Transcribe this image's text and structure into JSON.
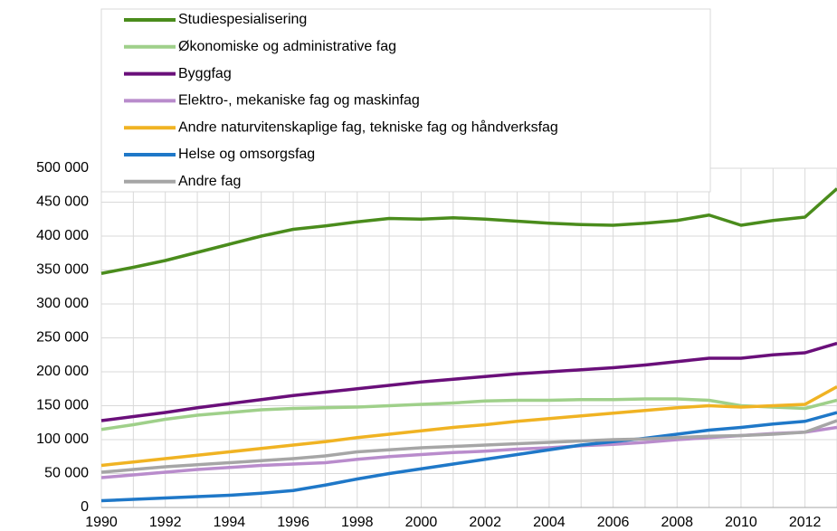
{
  "chart_data": {
    "type": "line",
    "x": [
      1990,
      1991,
      1992,
      1993,
      1994,
      1995,
      1996,
      1997,
      1998,
      1999,
      2000,
      2001,
      2002,
      2003,
      2004,
      2005,
      2006,
      2007,
      2008,
      2009,
      2010,
      2011,
      2012,
      2013
    ],
    "series": [
      {
        "name": "Studiespesialisering",
        "color": "#4a8c1c",
        "values": [
          345000,
          354000,
          364000,
          376000,
          388000,
          400000,
          410000,
          415000,
          421000,
          426000,
          425000,
          427000,
          425000,
          422000,
          419000,
          417000,
          416000,
          419000,
          423000,
          431000,
          416000,
          423000,
          428000,
          470000
        ]
      },
      {
        "name": "Økonomiske og administrative fag",
        "color": "#9fd08a",
        "values": [
          115000,
          122000,
          130000,
          136000,
          140000,
          144000,
          146000,
          147000,
          148000,
          150000,
          152000,
          154000,
          157000,
          158000,
          158000,
          159000,
          159000,
          160000,
          160000,
          158000,
          150000,
          148000,
          146000,
          158000
        ]
      },
      {
        "name": "Byggfag",
        "color": "#6a0f7a",
        "values": [
          128000,
          134000,
          140000,
          147000,
          153000,
          159000,
          165000,
          170000,
          175000,
          180000,
          185000,
          189000,
          193000,
          197000,
          200000,
          203000,
          206000,
          210000,
          215000,
          220000,
          220000,
          225000,
          228000,
          242000
        ]
      },
      {
        "name": "Elektro-, mekaniske fag og maskinfag",
        "color": "#b98ccc",
        "values": [
          44000,
          48000,
          52000,
          56000,
          59000,
          62000,
          64000,
          66000,
          71000,
          75000,
          78000,
          81000,
          83000,
          86000,
          88000,
          91000,
          93000,
          96000,
          100000,
          103000,
          106000,
          109000,
          111000,
          118000
        ]
      },
      {
        "name": "Andre naturvitenskaplige fag, tekniske fag og håndverksfag",
        "color": "#f0b323",
        "values": [
          62000,
          67000,
          72000,
          77000,
          82000,
          87000,
          92000,
          97000,
          103000,
          108000,
          113000,
          118000,
          122000,
          127000,
          131000,
          135000,
          139000,
          143000,
          147000,
          150000,
          148000,
          150000,
          152000,
          178000
        ]
      },
      {
        "name": "Helse og omsorgsfag",
        "color": "#1f78c8",
        "values": [
          10000,
          12000,
          14000,
          16000,
          18000,
          21000,
          25000,
          33000,
          42000,
          50000,
          57000,
          64000,
          71000,
          78000,
          85000,
          92000,
          97000,
          102000,
          108000,
          114000,
          118000,
          123000,
          127000,
          140000
        ]
      },
      {
        "name": "Andre fag",
        "color": "#a6a6a6",
        "values": [
          52000,
          56000,
          60000,
          63000,
          66000,
          69000,
          72000,
          76000,
          82000,
          85000,
          88000,
          90000,
          92000,
          94000,
          96000,
          98000,
          100000,
          101000,
          103000,
          105000,
          106000,
          108000,
          111000,
          128000
        ]
      }
    ],
    "xlim": [
      1990,
      2013
    ],
    "xticks": [
      1990,
      1992,
      1994,
      1996,
      1998,
      2000,
      2002,
      2004,
      2006,
      2008,
      2010,
      2012
    ],
    "ylim": [
      0,
      500000
    ],
    "yticks": [
      {
        "value": 0,
        "label": "0"
      },
      {
        "value": 50000,
        "label": "50 000"
      },
      {
        "value": 100000,
        "label": "100 000"
      },
      {
        "value": 150000,
        "label": "150 000"
      },
      {
        "value": 200000,
        "label": "200 000"
      },
      {
        "value": 250000,
        "label": "250 000"
      },
      {
        "value": 300000,
        "label": "300 000"
      },
      {
        "value": 350000,
        "label": "350 000"
      },
      {
        "value": 400000,
        "label": "400 000"
      },
      {
        "value": 450000,
        "label": "450 000"
      },
      {
        "value": 500000,
        "label": "500 000"
      }
    ],
    "grid": true,
    "legend": "top"
  }
}
